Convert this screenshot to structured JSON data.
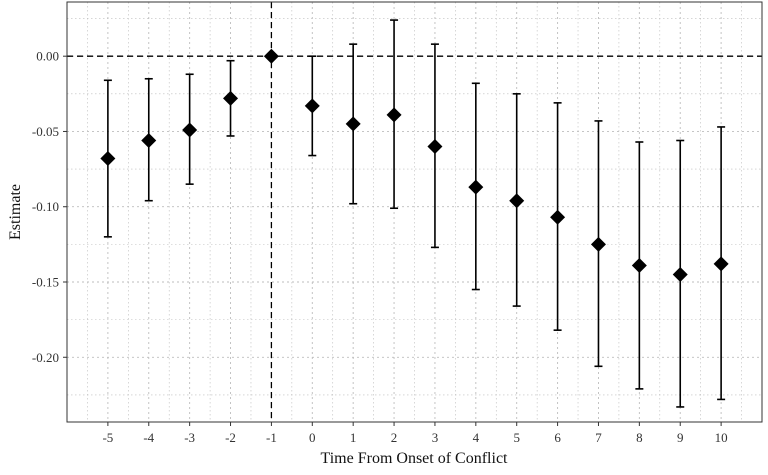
{
  "chart_data": {
    "type": "scatter",
    "title": "",
    "xlabel": "Time From Onset of Conflict",
    "ylabel": "Estimate",
    "x_ticks": [
      "-5",
      "-4",
      "-3",
      "-2",
      "-1",
      "0",
      "1",
      "2",
      "3",
      "4",
      "5",
      "6",
      "7",
      "8",
      "9",
      "10"
    ],
    "y_ticks": [
      {
        "value": 0.0,
        "label": "0.00"
      },
      {
        "value": -0.05,
        "label": "-0.05"
      },
      {
        "value": -0.1,
        "label": "-0.10"
      },
      {
        "value": -0.15,
        "label": "-0.15"
      },
      {
        "value": -0.2,
        "label": "-0.20"
      }
    ],
    "xlim": [
      -6,
      11
    ],
    "ylim": [
      -0.243,
      0.036
    ],
    "grid": true,
    "reference_lines": {
      "horizontal": 0.0,
      "vertical": -1
    },
    "points": [
      {
        "x": -5,
        "y": -0.068,
        "lower": -0.12,
        "upper": -0.016
      },
      {
        "x": -4,
        "y": -0.056,
        "lower": -0.096,
        "upper": -0.015
      },
      {
        "x": -3,
        "y": -0.049,
        "lower": -0.085,
        "upper": -0.012
      },
      {
        "x": -2,
        "y": -0.028,
        "lower": -0.053,
        "upper": -0.003
      },
      {
        "x": -1,
        "y": 0.0,
        "lower": 0.0,
        "upper": 0.0
      },
      {
        "x": 0,
        "y": -0.033,
        "lower": -0.066,
        "upper": 0.0
      },
      {
        "x": 1,
        "y": -0.045,
        "lower": -0.098,
        "upper": 0.008
      },
      {
        "x": 2,
        "y": -0.039,
        "lower": -0.101,
        "upper": 0.024
      },
      {
        "x": 3,
        "y": -0.06,
        "lower": -0.127,
        "upper": 0.008
      },
      {
        "x": 4,
        "y": -0.087,
        "lower": -0.155,
        "upper": -0.018
      },
      {
        "x": 5,
        "y": -0.096,
        "lower": -0.166,
        "upper": -0.025
      },
      {
        "x": 6,
        "y": -0.107,
        "lower": -0.182,
        "upper": -0.031
      },
      {
        "x": 7,
        "y": -0.125,
        "lower": -0.206,
        "upper": -0.043
      },
      {
        "x": 8,
        "y": -0.139,
        "lower": -0.221,
        "upper": -0.057
      },
      {
        "x": 9,
        "y": -0.145,
        "lower": -0.233,
        "upper": -0.056
      },
      {
        "x": 10,
        "y": -0.138,
        "lower": -0.228,
        "upper": -0.047
      }
    ],
    "colors": {
      "marker": "#000000",
      "errorbar": "#000000",
      "grid": "#bdbdbd",
      "reference": "#000000",
      "axis": "#333333"
    }
  }
}
